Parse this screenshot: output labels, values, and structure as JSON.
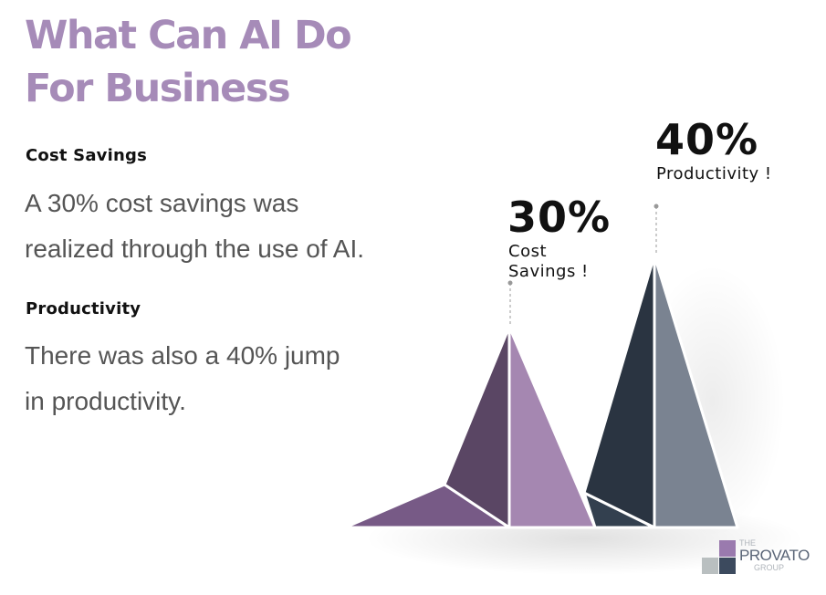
{
  "title": {
    "line1": "What Can AI Do",
    "line2": "For Business",
    "color": "#a68bb8"
  },
  "sections": [
    {
      "heading": "Cost Savings",
      "body_line1": "A 30% cost savings was",
      "body_line2": "realized through the use of AI."
    },
    {
      "heading": "Productivity",
      "body_line1": "There was also a 40% jump",
      "body_line2": "in productivity."
    }
  ],
  "callouts": [
    {
      "value": "30%",
      "label_line1": "Cost",
      "label_line2": "Savings !"
    },
    {
      "value": "40%",
      "label_line1": "Productivity !"
    }
  ],
  "colors": {
    "purple_dark": "#5a4664",
    "purple_mid": "#775a86",
    "purple_light": "#a587b1",
    "slate_dark": "#2a3441",
    "slate_mid": "#33404f",
    "slate_light": "#7a8391"
  },
  "logo": {
    "the": "THE",
    "name": "PROVATO",
    "group": "GROUP"
  }
}
